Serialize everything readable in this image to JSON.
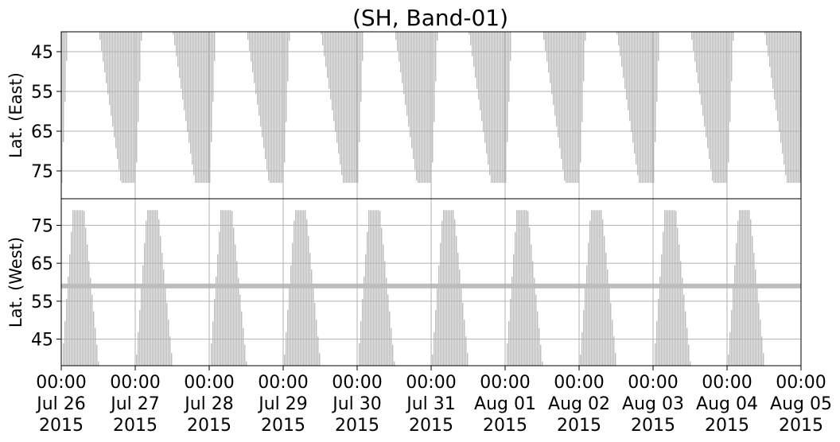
{
  "chart_data": {
    "type": "area",
    "title": "(SH, Band-01)",
    "grid": true,
    "fill_color": "#bdbdbd",
    "x_ticks": [
      {
        "time": "00:00",
        "date": "Jul 26",
        "year": "2015"
      },
      {
        "time": "00:00",
        "date": "Jul 27",
        "year": "2015"
      },
      {
        "time": "00:00",
        "date": "Jul 28",
        "year": "2015"
      },
      {
        "time": "00:00",
        "date": "Jul 29",
        "year": "2015"
      },
      {
        "time": "00:00",
        "date": "Jul 30",
        "year": "2015"
      },
      {
        "time": "00:00",
        "date": "Jul 31",
        "year": "2015"
      },
      {
        "time": "00:00",
        "date": "Aug 01",
        "year": "2015"
      },
      {
        "time": "00:00",
        "date": "Aug 02",
        "year": "2015"
      },
      {
        "time": "00:00",
        "date": "Aug 03",
        "year": "2015"
      },
      {
        "time": "00:00",
        "date": "Aug 04",
        "year": "2015"
      },
      {
        "time": "00:00",
        "date": "Aug 05",
        "year": "2015"
      }
    ],
    "xlim": [
      "2015-07-26 00:00",
      "2015-08-05 00:00"
    ],
    "panels": [
      {
        "id": "east",
        "ylabel": "Lat. (East)",
        "ylim": [
          40,
          82
        ],
        "y_inverted": true,
        "yticks": [
          45,
          55,
          65,
          75
        ],
        "description_rule": "coverage from top (40) down to boundary latitude",
        "boundary_series": {
          "x_days": [
            0.0,
            0.08,
            0.2,
            0.5,
            0.8,
            0.95,
            1.0,
            1.08,
            1.2,
            1.5,
            1.8,
            1.95,
            2.0,
            2.08,
            2.2,
            2.5,
            2.8,
            2.95,
            3.0,
            3.08,
            3.2,
            3.5,
            3.8,
            3.95,
            4.0,
            4.08,
            4.2,
            4.5,
            4.8,
            4.95,
            5.0,
            5.08,
            5.2,
            5.5,
            5.8,
            5.95,
            6.0,
            6.08,
            6.2,
            6.5,
            6.8,
            6.95,
            7.0,
            7.08,
            7.2,
            7.5,
            7.8,
            7.95,
            8.0,
            8.08,
            8.2,
            8.5,
            8.8,
            8.95,
            9.0,
            9.08,
            9.2,
            9.5,
            9.8,
            9.95,
            10.0
          ],
          "lat": [
            78,
            40,
            40,
            40,
            78,
            78,
            78,
            40,
            40,
            40,
            78,
            78,
            78,
            40,
            40,
            40,
            78,
            78,
            78,
            40,
            40,
            40,
            78,
            78,
            78,
            40,
            40,
            40,
            78,
            78,
            78,
            40,
            40,
            40,
            78,
            78,
            78,
            40,
            40,
            40,
            78,
            78,
            78,
            40,
            40,
            40,
            78,
            78,
            78,
            40,
            40,
            40,
            78,
            78,
            78,
            40,
            40,
            40,
            78,
            78,
            78
          ]
        }
      },
      {
        "id": "west",
        "ylabel": "Lat. (West)",
        "ylim": [
          38,
          82
        ],
        "y_inverted": false,
        "yticks": [
          45,
          55,
          65,
          75
        ],
        "description_rule": "coverage from bottom (38) up to boundary latitude",
        "boundary_series": {
          "x_days": [
            0.0,
            0.15,
            0.3,
            0.5,
            0.6,
            0.85,
            1.0,
            1.15,
            1.3,
            1.5,
            1.6,
            1.85,
            2.0,
            2.15,
            2.3,
            2.5,
            2.6,
            2.85,
            3.0,
            3.15,
            3.3,
            3.5,
            3.6,
            3.85,
            4.0,
            4.15,
            4.3,
            4.5,
            4.6,
            4.85,
            5.0,
            5.15,
            5.3,
            5.5,
            5.6,
            5.85,
            6.0,
            6.15,
            6.3,
            6.5,
            6.6,
            6.85,
            7.0,
            7.15,
            7.3,
            7.5,
            7.6,
            7.85,
            8.0,
            8.15,
            8.3,
            8.5,
            8.6,
            8.85,
            9.0,
            9.15,
            9.3,
            9.5,
            9.6,
            9.85,
            10.0
          ],
          "lat": [
            38,
            79,
            79,
            38,
            38,
            38,
            38,
            79,
            79,
            38,
            38,
            38,
            38,
            79,
            79,
            38,
            38,
            38,
            38,
            79,
            79,
            38,
            38,
            38,
            38,
            79,
            79,
            38,
            38,
            38,
            38,
            79,
            79,
            38,
            38,
            38,
            38,
            79,
            79,
            38,
            38,
            38,
            38,
            79,
            79,
            38,
            38,
            38,
            38,
            79,
            79,
            38,
            38,
            38,
            38,
            79,
            79,
            38,
            38,
            38,
            38
          ]
        },
        "band_lat": 59
      }
    ]
  }
}
